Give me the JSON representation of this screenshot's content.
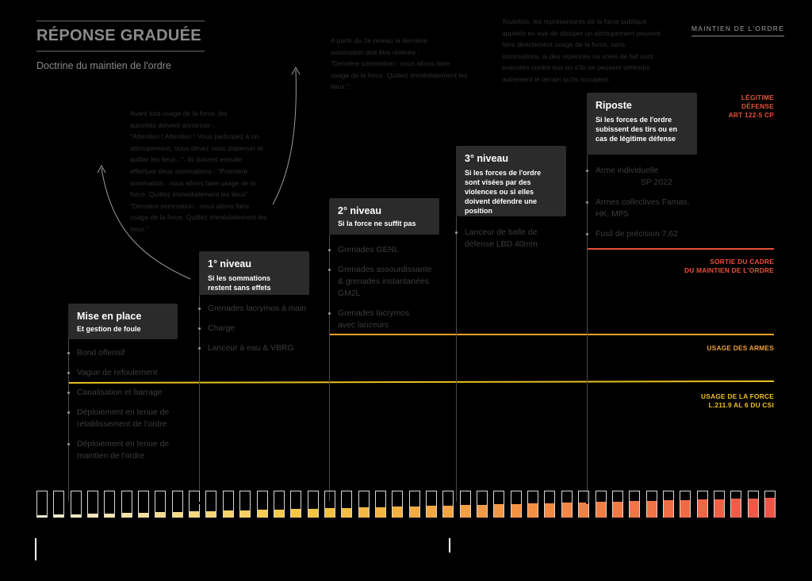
{
  "header": {
    "title": "RÉPONSE GRADUÉE",
    "subtitle": "Doctrine du maintien de l'ordre",
    "corner_tag": "MAINTIEN DE L'ORDRE"
  },
  "notes": {
    "left": [
      "Avant tout usage de la force, les",
      "autorités doivent annoncer :",
      "\"Attention ! Attention ! Vous participez à un",
      "attroupement. Vous devez vous disperser et",
      "quitter les lieux...\". Ils doivent ensuite",
      "effectuer deux sommations : \"Première",
      "sommation : nous allons faire usage de la",
      "force. Quittez immédiatement les lieux\".",
      "\"Dernière sommation : nous allons faire",
      "usage de la force. Quittez immédiatement les",
      "lieux.\""
    ],
    "middle": [
      "A partir du 2e niveau la dernière",
      "sommation doit être réitérée :",
      "\"Dernière sommation : nous allons faire",
      "usage de la force. Quittez immédiatement les",
      "lieux.\"."
    ],
    "right": [
      "Toutefois, les représentants de la force publique",
      "appelés en vue de dissiper un attroupement peuvent",
      "faire directement usage de la force, sans",
      "sommations, si des violences ou voies de fait sont",
      "exercées contre eux ou s'ils ne peuvent défendre",
      "autrement le terrain qu'ils occupent."
    ]
  },
  "levels": [
    {
      "title": "Mise en place",
      "subtitle": "Et gestion de foule",
      "items": [
        "Bond offensif",
        "Vague de refoulement",
        "Canalisation et barrage",
        "Déploiement en tenue de rétablissement de l'ordre",
        "Déploiement en tenue de maintien de l'ordre"
      ]
    },
    {
      "title": "1° niveau",
      "subtitle": "Si les sommations restent sans effets",
      "items": [
        "Grenades lacrymos à main",
        "Charge",
        "Lanceur à eau & VBRG"
      ]
    },
    {
      "title": "2° niveau",
      "subtitle": "Si la force ne suffit pas",
      "items": [
        "Grenades GENL",
        "Grenades assourdissante & grenades instantanées GM2L",
        "Grenades lacrymos avec lanceurs"
      ]
    },
    {
      "title": "3° niveau",
      "subtitle": "Si les forces de l'ordre sont visées par des violences ou si elles doivent défendre une position",
      "items": [
        "Lanceur de balle de défense LBD 40mm"
      ]
    },
    {
      "title": "Riposte",
      "subtitle": "Si les forces de l'ordre subissent des tirs ou en cas de légitime défense",
      "items": [
        "Arme individuelle",
        "SP 2022",
        "Armes collectives Famas, HK, MP5",
        "Fusil de précision 7,62"
      ]
    }
  ],
  "thresholds": {
    "legitime": "LÉGITIME DÉFENSE ART 122-5 CP",
    "legitime_lines": [
      "LÉGITIME",
      "DÉFENSE",
      "ART 122-5 CP"
    ],
    "sortie_lines": [
      "SORTIE DU CADRE",
      "DU MAINTIEN DE L'ORDRE"
    ],
    "armes": "USAGE DES ARMES",
    "force_lines": [
      "USAGE DE LA FORCE",
      "L.211.9 AL 6 DU CSI"
    ]
  },
  "colors": {
    "background": "#000000",
    "card": "#2b2b2b",
    "sortie_line": "#e8503a",
    "armes_line": "#f0a028",
    "force_line": "#e8c020",
    "legitime_text": "#e8503a",
    "armes_text": "#f0a038",
    "force_text": "#f0c020",
    "bar_start": "#f4eed8",
    "bar_mid": "#f5c842",
    "bar_end": "#ee5547"
  },
  "intensity_bars": {
    "count": 44,
    "fill_start": 0.1,
    "fill_end": 0.75
  }
}
